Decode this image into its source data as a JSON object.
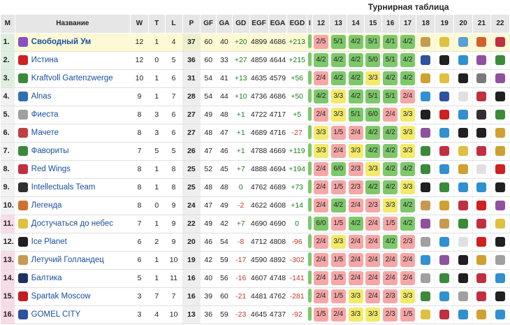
{
  "title": "Турнирная таблица",
  "headers": {
    "pos": "M",
    "name": "Название",
    "w": "W",
    "t": "T",
    "l": "L",
    "p": "P",
    "gf": "GF",
    "ga": "GA",
    "gd": "GD",
    "egf": "EGF",
    "ega": "EGA",
    "egd": "EGD",
    "first": "I"
  },
  "round_cols": [
    "12",
    "13",
    "14",
    "15",
    "16",
    "17",
    "18",
    "19",
    "20",
    "21",
    "22"
  ],
  "teams": [
    {
      "pos": "1.",
      "name": "Свободный Ум",
      "logo": "purple-creature-icon",
      "color": "#8a4fc0",
      "w": "12",
      "t": "1",
      "l": "4",
      "p": "37",
      "gf": "60",
      "ga": "40",
      "gd": "+20",
      "egf": "4899",
      "ega": "4686",
      "egd": "+213",
      "zone": "top",
      "leader": true,
      "cells": [
        [
          "2",
          "5"
        ],
        [
          "5",
          "1"
        ],
        [
          "4",
          "2"
        ],
        [
          "5",
          "1"
        ],
        [
          "4",
          "1"
        ],
        [
          "4",
          "2"
        ]
      ],
      "results": [
        "loss",
        "win",
        "win",
        "win",
        "win",
        "win"
      ],
      "logos": [
        [
          "#c79a52",
          "pup"
        ],
        [
          "#e0c040",
          "sun"
        ],
        [
          "#5aa0d0",
          "dog"
        ],
        [
          "#d06030",
          "red"
        ],
        [
          "#c03040",
          "win"
        ]
      ]
    },
    {
      "pos": "2.",
      "name": "Истина",
      "logo": "truth-logo-icon",
      "color": "#d02020",
      "w": "12",
      "t": "0",
      "l": "5",
      "p": "36",
      "gf": "60",
      "ga": "33",
      "gd": "+27",
      "egf": "4859",
      "ega": "4644",
      "egd": "+215",
      "zone": "top",
      "leader": false,
      "cells": [
        [
          "4",
          "2"
        ],
        [
          "4",
          "2"
        ],
        [
          "4",
          "2"
        ],
        [
          "5",
          "0"
        ],
        [
          "5",
          "1"
        ],
        [
          "4",
          "2"
        ]
      ],
      "results": [
        "win",
        "win",
        "win",
        "win",
        "win",
        "win"
      ],
      "logos": [
        [
          "#3050a0",
          "gnd"
        ],
        [
          "#202020",
          "ice"
        ],
        [
          "#3090d0",
          "blu"
        ],
        [
          "#9050a0",
          "pur"
        ],
        [
          "#3a8a3a",
          "fav"
        ]
      ]
    },
    {
      "pos": "3.",
      "name": "Kraftvoll Gartenzwerge",
      "logo": "green-gnome-icon",
      "color": "#3a8a3a",
      "w": "10",
      "t": "1",
      "l": "6",
      "p": "31",
      "gf": "54",
      "ga": "41",
      "gd": "+13",
      "egf": "4635",
      "ega": "4579",
      "egd": "+56",
      "zone": "top",
      "leader": false,
      "cells": [
        [
          "2",
          "4"
        ],
        [
          "4",
          "2"
        ],
        [
          "4",
          "2"
        ],
        [
          "3",
          "3"
        ],
        [
          "4",
          "2"
        ],
        [
          "4",
          "2"
        ]
      ],
      "results": [
        "loss",
        "win",
        "win",
        "draw",
        "win",
        "win"
      ],
      "logos": [
        [
          "#d0a030",
          "cat"
        ],
        [
          "#e0c040",
          "sun"
        ],
        [
          "#202020",
          "ice"
        ],
        [
          "#7a7a7a",
          "gry"
        ],
        [
          "#9050a0",
          "pur"
        ]
      ]
    },
    {
      "pos": "4.",
      "name": "Alnas",
      "logo": "alnas-icon",
      "color": "#3070b0",
      "w": "9",
      "t": "1",
      "l": "7",
      "p": "28",
      "gf": "54",
      "ga": "44",
      "gd": "+10",
      "egf": "4736",
      "ega": "4686",
      "egd": "+50",
      "zone": "tm",
      "leader": false,
      "cells": [
        [
          "4",
          "2"
        ],
        [
          "3",
          "3"
        ],
        [
          "4",
          "2"
        ],
        [
          "5",
          "1"
        ],
        [
          "5",
          "1"
        ],
        [
          "2",
          "4"
        ]
      ],
      "results": [
        "win",
        "draw",
        "win",
        "win",
        "win",
        "loss"
      ],
      "logos": [
        [
          "#3090d0",
          "blu"
        ],
        [
          "#3050a0",
          "gnd"
        ],
        [
          "#e0e0e0",
          "wht"
        ],
        [
          "#c03040",
          "red"
        ],
        [
          "#202020",
          "ice"
        ]
      ]
    },
    {
      "pos": "5.",
      "name": "Фиеста",
      "logo": "fiesta-icon",
      "color": "#a0a0a0",
      "w": "8",
      "t": "3",
      "l": "6",
      "p": "27",
      "gf": "49",
      "ga": "48",
      "gd": "+1",
      "egf": "4722",
      "ega": "4717",
      "egd": "+5",
      "zone": "tm",
      "leader": false,
      "cells": [
        [
          "2",
          "4"
        ],
        [
          "3",
          "3"
        ],
        [
          "5",
          "1"
        ],
        [
          "6",
          "0"
        ],
        [
          "2",
          "4"
        ],
        [
          "3",
          "3"
        ]
      ],
      "results": [
        "loss",
        "draw",
        "win",
        "win",
        "loss",
        "draw"
      ],
      "logos": [
        [
          "#202020",
          "ice"
        ],
        [
          "#d02020",
          "tru"
        ],
        [
          "#3090d0",
          "blu"
        ],
        [
          "#303030",
          "blk"
        ],
        [
          "#3a8a3a",
          "fav"
        ]
      ]
    },
    {
      "pos": "6.",
      "name": "Мачете",
      "logo": "machete-icon",
      "color": "#c04040",
      "w": "8",
      "t": "3",
      "l": "6",
      "p": "27",
      "gf": "48",
      "ga": "47",
      "gd": "+1",
      "egf": "4689",
      "ega": "4716",
      "egd": "-27",
      "zone": "tm",
      "leader": false,
      "cells": [
        [
          "3",
          "3"
        ],
        [
          "1",
          "5"
        ],
        [
          "2",
          "4"
        ],
        [
          "4",
          "2"
        ],
        [
          "4",
          "2"
        ],
        [
          "3",
          "3"
        ]
      ],
      "results": [
        "draw",
        "loss",
        "loss",
        "win",
        "win",
        "draw"
      ],
      "logos": [
        [
          "#9050a0",
          "pur"
        ],
        [
          "#3090d0",
          "blu"
        ],
        [
          "#202020",
          "ice"
        ],
        [
          "#202020",
          "blk"
        ],
        [
          "#d0a030",
          "cat"
        ]
      ]
    },
    {
      "pos": "7.",
      "name": "Фавориты",
      "logo": "favorites-icon",
      "color": "#3a8a3a",
      "w": "7",
      "t": "5",
      "l": "5",
      "p": "26",
      "gf": "47",
      "ga": "46",
      "gd": "+1",
      "egf": "4788",
      "ega": "4669",
      "egd": "+119",
      "zone": "tm",
      "leader": false,
      "cells": [
        [
          "3",
          "3"
        ],
        [
          "2",
          "4"
        ],
        [
          "3",
          "3"
        ],
        [
          "4",
          "2"
        ],
        [
          "4",
          "2"
        ],
        [
          "3",
          "3"
        ]
      ],
      "results": [
        "draw",
        "loss",
        "draw",
        "win",
        "win",
        "draw"
      ],
      "logos": [
        [
          "#3a8a3a",
          "fav"
        ],
        [
          "#c03040",
          "red"
        ],
        [
          "#e0c040",
          "sun"
        ],
        [
          "#c03040",
          "red"
        ],
        [
          "#d0a030",
          "cat"
        ]
      ]
    },
    {
      "pos": "8.",
      "name": "Red Wings",
      "logo": "red-wings-icon",
      "color": "#c03040",
      "w": "8",
      "t": "1",
      "l": "8",
      "p": "25",
      "gf": "52",
      "ga": "45",
      "gd": "+7",
      "egf": "4888",
      "ega": "4694",
      "egd": "+194",
      "zone": "tm",
      "leader": false,
      "cells": [
        [
          "2",
          "4"
        ],
        [
          "6",
          "0"
        ],
        [
          "2",
          "3"
        ],
        [
          "3",
          "3"
        ],
        [
          "4",
          "2"
        ],
        [
          "4",
          "2"
        ]
      ],
      "results": [
        "loss",
        "win",
        "loss",
        "draw",
        "win",
        "win"
      ],
      "logos": [
        [
          "#3a8a3a",
          "fav"
        ],
        [
          "#3090d0",
          "blu"
        ],
        [
          "#d0a030",
          "cat"
        ],
        [
          "#e0e0e0",
          "wht"
        ],
        [
          "#d02020",
          "tru"
        ]
      ]
    },
    {
      "pos": "9.",
      "name": "Intellectuals Team",
      "logo": "intellectuals-icon",
      "color": "#303030",
      "w": "8",
      "t": "1",
      "l": "8",
      "p": "25",
      "gf": "48",
      "ga": "48",
      "gd": "0",
      "egf": "4762",
      "ega": "4689",
      "egd": "+73",
      "zone": "tm",
      "leader": false,
      "cells": [
        [
          "2",
          "4"
        ],
        [
          "1",
          "5"
        ],
        [
          "2",
          "3"
        ],
        [
          "4",
          "2"
        ],
        [
          "4",
          "2"
        ],
        [
          "3",
          "3"
        ]
      ],
      "results": [
        "loss",
        "loss",
        "loss",
        "win",
        "win",
        "draw"
      ],
      "logos": [
        [
          "#202020",
          "ice"
        ],
        [
          "#3a8a3a",
          "fav"
        ],
        [
          "#3090d0",
          "blu"
        ],
        [
          "#3090d0",
          "blu"
        ],
        [
          "#202020",
          "blk"
        ]
      ]
    },
    {
      "pos": "10.",
      "name": "Легенда",
      "logo": "legend-icon",
      "color": "#d07030",
      "w": "8",
      "t": "0",
      "l": "9",
      "p": "24",
      "gf": "47",
      "ga": "49",
      "gd": "-2",
      "egf": "4622",
      "ega": "4608",
      "egd": "+14",
      "zone": "tm",
      "leader": false,
      "cells": [
        [
          "2",
          "4"
        ],
        [
          "4",
          "2"
        ],
        [
          "2",
          "4"
        ],
        [
          "2",
          "3"
        ],
        [
          "3",
          "3"
        ],
        [
          "4",
          "2"
        ]
      ],
      "results": [
        "loss",
        "win",
        "loss",
        "loss",
        "draw",
        "win"
      ],
      "logos": [
        [
          "#c79a52",
          "pup"
        ],
        [
          "#d0a030",
          "cat"
        ],
        [
          "#c03040",
          "red"
        ],
        [
          "#d02020",
          "tru"
        ],
        [
          "#9050a0",
          "pur"
        ]
      ]
    },
    {
      "pos": "11.",
      "name": "Достучаться до небес",
      "logo": "heaven-icon",
      "color": "#e0c040",
      "w": "7",
      "t": "1",
      "l": "9",
      "p": "22",
      "gf": "49",
      "ga": "42",
      "gd": "+7",
      "egf": "4690",
      "ega": "4690",
      "egd": "0",
      "zone": "bot",
      "leader": false,
      "cells": [
        [
          "6",
          "0"
        ],
        [
          "1",
          "5"
        ],
        [
          "4",
          "2"
        ],
        [
          "2",
          "4"
        ],
        [
          "1",
          "5"
        ],
        [
          "4",
          "2"
        ]
      ],
      "results": [
        "win",
        "loss",
        "win",
        "loss",
        "loss",
        "win"
      ],
      "logos": [
        [
          "#9050a0",
          "pur"
        ],
        [
          "#c79a52",
          "pup"
        ],
        [
          "#3a8a3a",
          "fav"
        ],
        [
          "#c03040",
          "red"
        ],
        [
          "#e0c040",
          "sun"
        ]
      ]
    },
    {
      "pos": "12.",
      "name": "Ice Planet",
      "logo": "ice-planet-icon",
      "color": "#202020",
      "w": "6",
      "t": "2",
      "l": "9",
      "p": "20",
      "gf": "46",
      "ga": "54",
      "gd": "-8",
      "egf": "4712",
      "ega": "4808",
      "egd": "-96",
      "zone": "tm",
      "leader": false,
      "cells": [
        [
          "2",
          "4"
        ],
        [
          "3",
          "3"
        ],
        [
          "2",
          "4"
        ],
        [
          "2",
          "4"
        ],
        [
          "4",
          "2"
        ],
        [
          "2",
          "3"
        ]
      ],
      "results": [
        "loss",
        "draw",
        "loss",
        "loss",
        "win",
        "loss"
      ],
      "logos": [
        [
          "#a0a0a0",
          "fie"
        ],
        [
          "#3090d0",
          "blu"
        ],
        [
          "#e0e0e0",
          "wht"
        ],
        [
          "#d02020",
          "tru"
        ],
        [
          "#202020",
          "ice"
        ]
      ]
    },
    {
      "pos": "13.",
      "name": "Летучий Голландец",
      "logo": "dutchman-icon",
      "color": "#c79a52",
      "w": "6",
      "t": "1",
      "l": "10",
      "p": "19",
      "gf": "42",
      "ga": "59",
      "gd": "-17",
      "egf": "4590",
      "ega": "4892",
      "egd": "-302",
      "zone": "bot",
      "leader": false,
      "cells": [
        [
          "2",
          "4"
        ],
        [
          "1",
          "5"
        ],
        [
          "2",
          "4"
        ],
        [
          "2",
          "4"
        ],
        [
          "2",
          "4"
        ],
        [
          "2",
          "4"
        ]
      ],
      "results": [
        "loss",
        "loss",
        "loss",
        "loss",
        "loss",
        "loss"
      ],
      "logos": [
        [
          "#3090d0",
          "blu"
        ],
        [
          "#9050a0",
          "pur"
        ],
        [
          "#202020",
          "ice"
        ],
        [
          "#d0a030",
          "cat"
        ],
        [
          "#a0a0a0",
          "fie"
        ]
      ]
    },
    {
      "pos": "14.",
      "name": "Балтика",
      "logo": "baltika-icon",
      "color": "#203060",
      "w": "5",
      "t": "1",
      "l": "11",
      "p": "16",
      "gf": "40",
      "ga": "56",
      "gd": "-16",
      "egf": "4607",
      "ega": "4748",
      "egd": "-141",
      "zone": "bot",
      "leader": false,
      "cells": [
        [
          "2",
          "4"
        ],
        [
          "1",
          "5"
        ],
        [
          "2",
          "4"
        ],
        [
          "2",
          "4"
        ],
        [
          "2",
          "4"
        ],
        [
          "2",
          "4"
        ]
      ],
      "results": [
        "loss",
        "loss",
        "loss",
        "loss",
        "loss",
        "loss"
      ],
      "logos": [
        [
          "#a0a0a0",
          "fie"
        ],
        [
          "#3a8a3a",
          "fav"
        ],
        [
          "#202020",
          "blk"
        ],
        [
          "#c03040",
          "red"
        ],
        [
          "#3090d0",
          "blu"
        ]
      ]
    },
    {
      "pos": "15.",
      "name": "Spartak Moscow",
      "logo": "spartak-icon",
      "color": "#c02020",
      "w": "3",
      "t": "7",
      "l": "7",
      "p": "16",
      "gf": "39",
      "ga": "60",
      "gd": "-21",
      "egf": "4481",
      "ega": "4762",
      "egd": "-281",
      "zone": "bot",
      "leader": false,
      "cells": [
        [
          "2",
          "4"
        ],
        [
          "1",
          "5"
        ],
        [
          "3",
          "3"
        ],
        [
          "2",
          "4"
        ],
        [
          "2",
          "3"
        ],
        [
          "3",
          "3"
        ]
      ],
      "results": [
        "loss",
        "loss",
        "draw",
        "loss",
        "loss",
        "draw"
      ],
      "logos": [
        [
          "#3a8a3a",
          "fav"
        ],
        [
          "#3090d0",
          "blu"
        ],
        [
          "#a0a0a0",
          "fie"
        ],
        [
          "#c03040",
          "red"
        ],
        [
          "#202020",
          "ice"
        ]
      ]
    },
    {
      "pos": "16.",
      "name": "GOMEL CITY",
      "logo": "gomel-city-icon",
      "color": "#3050a0",
      "w": "3",
      "t": "4",
      "l": "10",
      "p": "13",
      "gf": "36",
      "ga": "59",
      "gd": "-23",
      "egf": "4645",
      "ega": "4737",
      "egd": "-92",
      "zone": "bot",
      "leader": false,
      "cells": [
        [
          "1",
          "5"
        ],
        [
          "2",
          "4"
        ],
        [
          "3",
          "3"
        ],
        [
          "3",
          "3"
        ],
        [
          "2",
          "3"
        ],
        [
          "1",
          "5"
        ]
      ],
      "results": [
        "loss",
        "loss",
        "draw",
        "draw",
        "loss",
        "loss"
      ],
      "logos": [
        [
          "#e0c040",
          "sun"
        ],
        [
          "#c03040",
          "red"
        ],
        [
          "#3090d0",
          "blu"
        ],
        [
          "#d0a030",
          "cat"
        ],
        [
          "#3090d0",
          "blu"
        ]
      ]
    }
  ]
}
